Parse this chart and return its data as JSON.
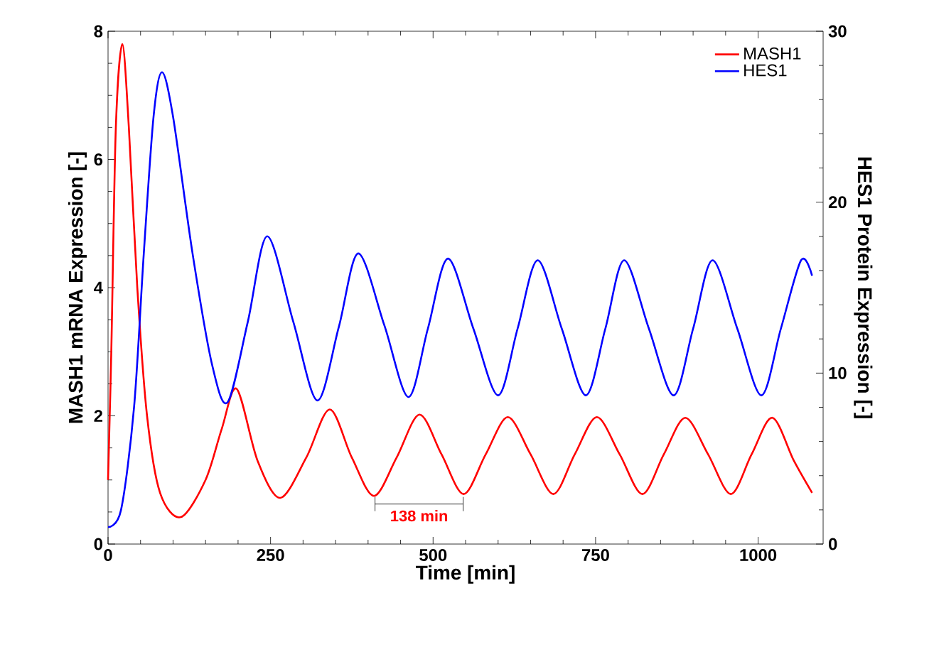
{
  "chart_data": {
    "type": "line",
    "xlabel": "Time [min]",
    "ylabel": "MASH1 mRNA Expression [-]",
    "y2label": "HES1 Protein Expression [-]",
    "xlim": [
      0,
      1100
    ],
    "xticks": [
      0,
      250,
      500,
      750,
      1000
    ],
    "ylim": [
      0,
      8
    ],
    "yticks": [
      0,
      2,
      4,
      6,
      8
    ],
    "y2lim": [
      0,
      30
    ],
    "y2ticks": [
      0,
      10,
      20,
      30
    ],
    "legend": "top right",
    "grid": false,
    "marker": "none",
    "line_style": "solid",
    "series": [
      {
        "name": "MASH1",
        "color": "#ff0000",
        "x": [
          0,
          5,
          12,
          22,
          32,
          45,
          60,
          80,
          112,
          150,
          175,
          198,
          230,
          265,
          305,
          341,
          375,
          409,
          444,
          479,
          513,
          547,
          581,
          615,
          650,
          685,
          718,
          752,
          787,
          822,
          855,
          888,
          923,
          958,
          990,
          1022,
          1055,
          1083
        ],
        "values": [
          1.0,
          3.0,
          6.5,
          7.8,
          6.5,
          4.0,
          2.0,
          0.8,
          0.42,
          1.0,
          1.8,
          2.42,
          1.3,
          0.72,
          1.35,
          2.1,
          1.35,
          0.75,
          1.35,
          2.02,
          1.4,
          0.78,
          1.4,
          1.98,
          1.4,
          0.78,
          1.4,
          1.98,
          1.4,
          0.78,
          1.4,
          1.97,
          1.4,
          0.78,
          1.4,
          1.97,
          1.3,
          0.8
        ]
      },
      {
        "name": "HES1",
        "color": "#0000ff",
        "axis": "y2",
        "x": [
          0,
          20,
          40,
          55,
          70,
          83,
          100,
          130,
          160,
          184,
          215,
          245,
          285,
          322,
          355,
          385,
          425,
          462,
          492,
          523,
          562,
          600,
          630,
          661,
          698,
          735,
          765,
          794,
          832,
          870,
          900,
          930,
          968,
          1005,
          1035,
          1066,
          1083
        ],
        "values": [
          1.0,
          2.0,
          8.0,
          17.0,
          25.0,
          27.6,
          25.0,
          17.0,
          10.5,
          8.3,
          13.0,
          18.0,
          13.0,
          8.4,
          12.7,
          17.0,
          12.8,
          8.6,
          12.6,
          16.7,
          12.6,
          8.7,
          12.6,
          16.6,
          12.6,
          8.7,
          12.6,
          16.6,
          12.6,
          8.7,
          12.6,
          16.6,
          12.6,
          8.7,
          12.6,
          16.6,
          15.7
        ]
      }
    ],
    "annotations": [
      "138 min"
    ]
  }
}
